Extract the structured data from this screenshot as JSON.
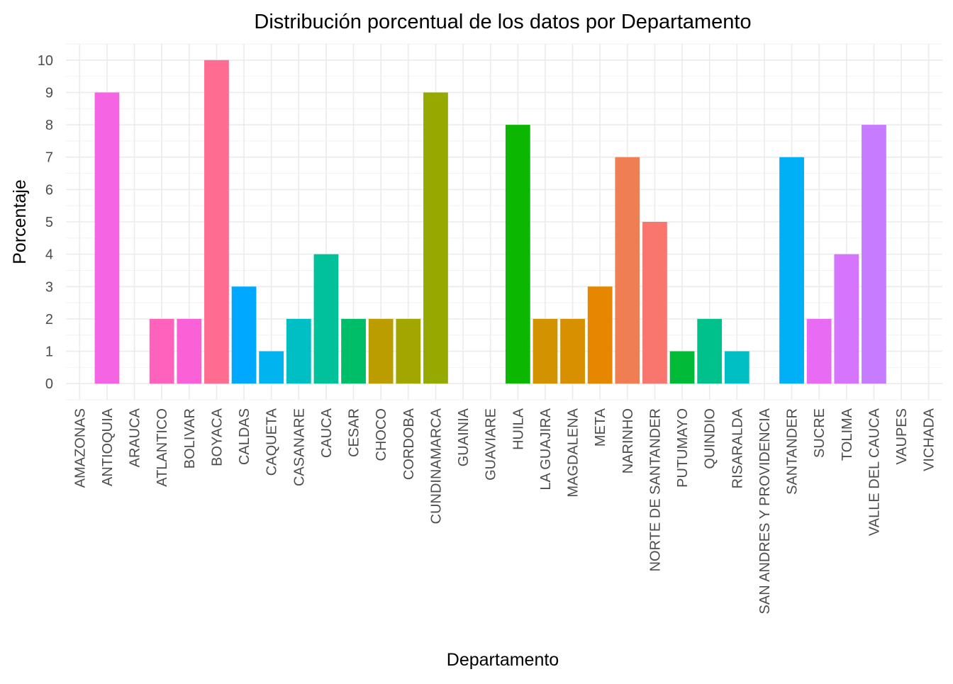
{
  "chart_data": {
    "type": "bar",
    "title": "Distribución porcentual de los datos por Departamento",
    "xlabel": "Departamento",
    "ylabel": "Porcentaje",
    "ylim": [
      -0.5,
      10.5
    ],
    "yticks": [
      0,
      1,
      2,
      3,
      4,
      5,
      6,
      7,
      8,
      9,
      10
    ],
    "grid": true,
    "legend": "none",
    "categories": [
      "AMAZONAS",
      "ANTIOQUIA",
      "ARAUCA",
      "ATLANTICO",
      "BOLIVAR",
      "BOYACA",
      "CALDAS",
      "CAQUETA",
      "CASANARE",
      "CAUCA",
      "CESAR",
      "CHOCO",
      "CORDOBA",
      "CUNDINAMARCA",
      "GUAINIA",
      "GUAVIARE",
      "HUILA",
      "LA GUAJIRA",
      "MAGDALENA",
      "META",
      "NARINHO",
      "NORTE DE SANTANDER",
      "PUTUMAYO",
      "QUINDIO",
      "RISARALDA",
      "SAN ANDRES Y PROVIDENCIA",
      "SANTANDER",
      "SUCRE",
      "TOLIMA",
      "VALLE DEL CAUCA",
      "VAUPES",
      "VICHADA"
    ],
    "values": [
      0,
      9,
      0,
      2,
      2,
      10,
      3,
      1,
      2,
      4,
      2,
      2,
      2,
      9,
      0,
      0,
      8,
      2,
      2,
      3,
      7,
      5,
      1,
      2,
      1,
      0,
      7,
      2,
      4,
      8,
      0,
      0
    ],
    "colors": [
      "#F8766D",
      "#F564E3",
      "#F8766D",
      "#FF62BC",
      "#FB61D7",
      "#FF6C91",
      "#00A9FF",
      "#00B4EF",
      "#00BFC4",
      "#00C19A",
      "#00BE67",
      "#BB9D00",
      "#A3A500",
      "#95A900",
      "#F8766D",
      "#F8766D",
      "#0CB702",
      "#D39200",
      "#D89000",
      "#E58700",
      "#F07E53",
      "#F8766D",
      "#00BA38",
      "#00C08B",
      "#00BFC4",
      "#F8766D",
      "#00B0F6",
      "#E76BF3",
      "#D575FE",
      "#C77CFF",
      "#F8766D",
      "#F8766D"
    ]
  }
}
